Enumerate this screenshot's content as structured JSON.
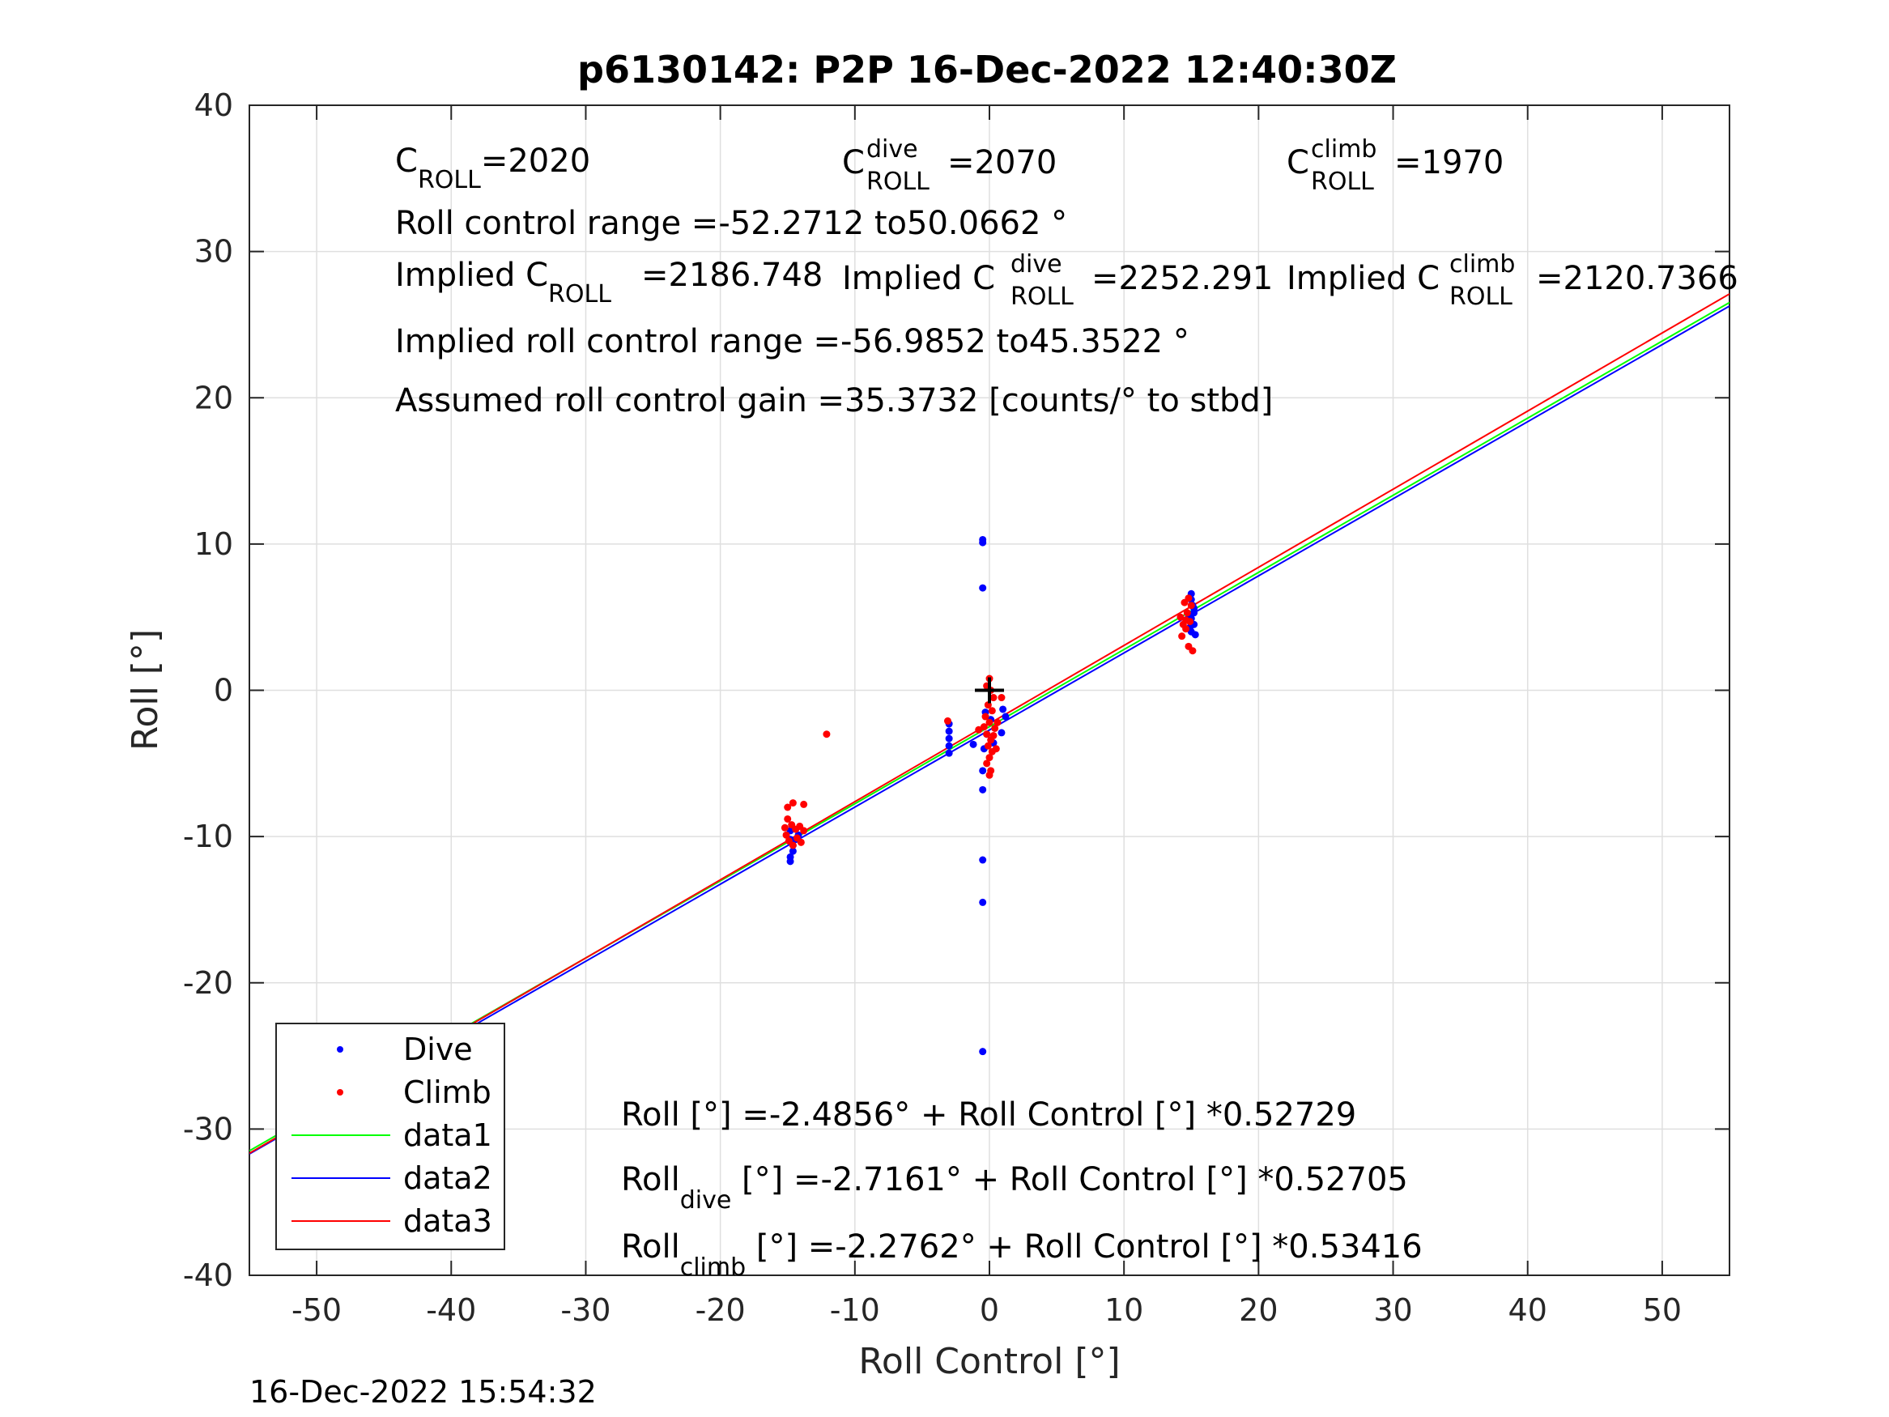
{
  "figure": {
    "title": "p6130142: P2P 16-Dec-2022 12:40:30Z",
    "timestamp": "16-Dec-2022 15:54:32"
  },
  "annotations": {
    "c_roll_prefix": "C",
    "c_roll_sub": "ROLL",
    "c_roll_value": "=2020",
    "c_dive_prefix": "C",
    "c_dive_sup": "dive",
    "c_dive_sub": "ROLL",
    "c_dive_value": "=2070",
    "c_climb_prefix": "C",
    "c_climb_sup": "climb",
    "c_climb_sub": "ROLL",
    "c_climb_value": "=1970",
    "roll_control_range": "Roll control range =-52.2712 to50.0662 °",
    "implied_c_roll_prefix": "Implied C",
    "implied_c_roll_sub": "ROLL",
    "implied_c_roll_value": "=2186.748",
    "implied_c_dive_prefix": "Implied C",
    "implied_c_dive_sup": "dive",
    "implied_c_dive_sub": "ROLL",
    "implied_c_dive_value": "=2252.291",
    "implied_c_climb_prefix": "Implied C",
    "implied_c_climb_sup": "climb",
    "implied_c_climb_sub": "ROLL",
    "implied_c_climb_value": "=2120.7366",
    "implied_range": "Implied roll control range =-56.9852 to45.3522 °",
    "gain": "Assumed roll control gain =35.3732 [counts/° to stbd]",
    "fit_all": "Roll [°] =-2.4856° + Roll Control [°] *0.52729",
    "fit_dive_prefix": "Roll",
    "fit_dive_sub": "dive",
    "fit_dive_rest": " [°] =-2.7161° + Roll Control [°] *0.52705",
    "fit_climb_prefix": "Roll",
    "fit_climb_sub": "climb",
    "fit_climb_rest": " [°] =-2.2762° + Roll Control [°] *0.53416"
  },
  "chart_data": {
    "type": "scatter",
    "title": "p6130142: P2P 16-Dec-2022 12:40:30Z",
    "xlabel": "Roll Control [°]",
    "ylabel": "Roll [°]",
    "xlim": [
      -55,
      55
    ],
    "ylim": [
      -40,
      40
    ],
    "xticks": [
      -50,
      -40,
      -30,
      -20,
      -10,
      0,
      10,
      20,
      30,
      40,
      50
    ],
    "yticks": [
      -40,
      -30,
      -20,
      -10,
      0,
      10,
      20,
      30,
      40
    ],
    "grid": true,
    "legend_position": "bottom-left",
    "series": [
      {
        "name": "Dive",
        "kind": "points",
        "color": "#0000ff",
        "points": [
          [
            -0.5,
            10.3
          ],
          [
            -0.5,
            10.1
          ],
          [
            -0.5,
            7.0
          ],
          [
            -0.5,
            -11.6
          ],
          [
            -0.5,
            -14.5
          ],
          [
            -0.5,
            -24.7
          ],
          [
            -0.5,
            -6.8
          ],
          [
            -0.5,
            -5.5
          ],
          [
            -3.0,
            -2.3
          ],
          [
            -3.0,
            -2.8
          ],
          [
            -3.0,
            -3.3
          ],
          [
            -3.0,
            -3.8
          ],
          [
            -3.0,
            -4.3
          ],
          [
            -1.2,
            -3.7
          ],
          [
            -0.3,
            -1.5
          ],
          [
            0.1,
            -2.0
          ],
          [
            -0.2,
            -3.0
          ],
          [
            0.3,
            -3.6
          ],
          [
            1.0,
            -1.3
          ],
          [
            1.2,
            -1.8
          ],
          [
            0.9,
            -2.9
          ],
          [
            -0.4,
            -4.0
          ],
          [
            -14.8,
            -9.6
          ],
          [
            -14.8,
            -10.2
          ],
          [
            -14.6,
            -10.6
          ],
          [
            -14.6,
            -11.0
          ],
          [
            -14.8,
            -11.4
          ],
          [
            -14.8,
            -11.7
          ],
          [
            -14.4,
            -10.2
          ],
          [
            -14.2,
            -9.9
          ],
          [
            15.0,
            6.6
          ],
          [
            15.0,
            6.2
          ],
          [
            15.1,
            5.8
          ],
          [
            15.2,
            5.3
          ],
          [
            15.0,
            4.9
          ],
          [
            15.2,
            4.5
          ],
          [
            15.0,
            4.0
          ],
          [
            15.3,
            3.8
          ],
          [
            14.8,
            5.0
          ],
          [
            15.2,
            5.6
          ],
          [
            14.9,
            4.3
          ]
        ]
      },
      {
        "name": "Climb",
        "kind": "points",
        "color": "#ff0000",
        "points": [
          [
            -12.1,
            -3.0
          ],
          [
            -3.1,
            -2.1
          ],
          [
            -15.0,
            -8.0
          ],
          [
            -14.6,
            -7.7
          ],
          [
            -13.8,
            -7.8
          ],
          [
            -15.0,
            -8.8
          ],
          [
            -14.7,
            -9.2
          ],
          [
            -14.4,
            -9.5
          ],
          [
            -14.1,
            -9.3
          ],
          [
            -13.8,
            -9.6
          ],
          [
            -15.1,
            -9.9
          ],
          [
            -14.9,
            -10.3
          ],
          [
            -14.6,
            -10.6
          ],
          [
            -14.3,
            -10.1
          ],
          [
            -14.0,
            -10.4
          ],
          [
            -15.2,
            -9.4
          ],
          [
            0.0,
            0.8
          ],
          [
            -0.2,
            0.3
          ],
          [
            0.1,
            0.0
          ],
          [
            0.3,
            -0.5
          ],
          [
            -0.1,
            -1.0
          ],
          [
            0.2,
            -1.4
          ],
          [
            -0.3,
            -1.8
          ],
          [
            0.0,
            -2.2
          ],
          [
            0.4,
            -2.6
          ],
          [
            -0.2,
            -3.0
          ],
          [
            0.1,
            -3.4
          ],
          [
            -0.1,
            -3.8
          ],
          [
            0.2,
            -4.2
          ],
          [
            0.0,
            -4.6
          ],
          [
            -0.2,
            -5.0
          ],
          [
            0.1,
            -5.5
          ],
          [
            0.0,
            -5.8
          ],
          [
            0.3,
            -3.1
          ],
          [
            -0.4,
            -2.5
          ],
          [
            0.6,
            -2.2
          ],
          [
            0.9,
            -0.5
          ],
          [
            -0.8,
            -2.7
          ],
          [
            0.5,
            -4.0
          ],
          [
            14.3,
            3.7
          ],
          [
            14.6,
            4.2
          ],
          [
            14.9,
            4.7
          ],
          [
            14.7,
            5.3
          ],
          [
            15.0,
            5.8
          ],
          [
            14.5,
            6.0
          ],
          [
            14.8,
            6.3
          ],
          [
            14.2,
            5.0
          ],
          [
            14.4,
            4.5
          ],
          [
            15.1,
            2.7
          ],
          [
            14.8,
            3.0
          ],
          [
            14.6,
            4.8
          ]
        ]
      },
      {
        "name": "data1",
        "kind": "line",
        "color": "#00ff00",
        "intercept": -2.4856,
        "slope": 0.52729
      },
      {
        "name": "data2",
        "kind": "line",
        "color": "#0000ff",
        "intercept": -2.7161,
        "slope": 0.52705
      },
      {
        "name": "data3",
        "kind": "line",
        "color": "#ff0000",
        "intercept": -2.2762,
        "slope": 0.53416
      },
      {
        "name": "",
        "kind": "marker",
        "color": "#000000",
        "points": [
          [
            0,
            0
          ]
        ]
      }
    ]
  }
}
